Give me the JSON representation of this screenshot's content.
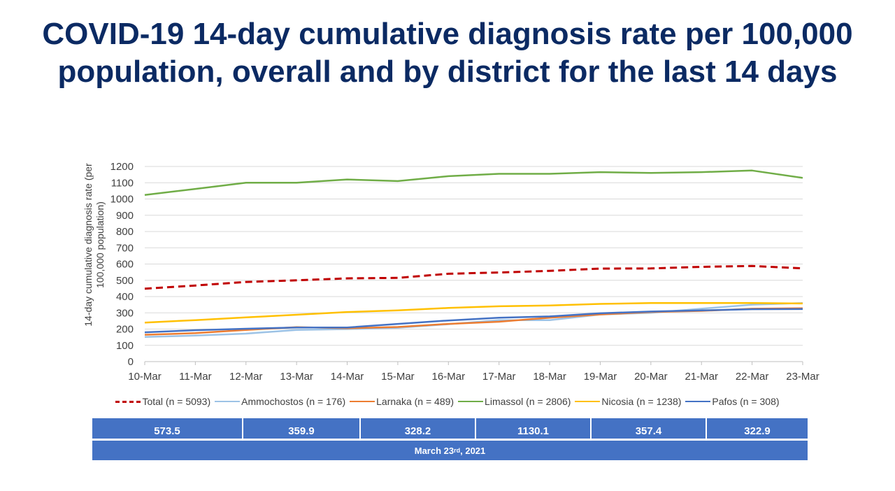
{
  "title": {
    "line1": "COVID-19 14-day cumulative diagnosis rate per 100,000",
    "line2": "population, overall and by district for the last 14 days"
  },
  "chart_data": {
    "type": "line",
    "ylabel": "14-day cumulative diagnosis rate (per 100,000 population)",
    "ylim": [
      0,
      1200
    ],
    "yticks": [
      0,
      100,
      200,
      300,
      400,
      500,
      600,
      700,
      800,
      900,
      1000,
      1100,
      1200
    ],
    "categories": [
      "10-Mar",
      "11-Mar",
      "12-Mar",
      "13-Mar",
      "14-Mar",
      "15-Mar",
      "16-Mar",
      "17-Mar",
      "18-Mar",
      "19-Mar",
      "20-Mar",
      "21-Mar",
      "22-Mar",
      "23-Mar"
    ],
    "grid": true,
    "legend_position": "bottom",
    "series": [
      {
        "name": "Total (n = 5093)",
        "color": "#c00000",
        "dashed": true,
        "values": [
          448,
          468,
          490,
          500,
          512,
          515,
          540,
          548,
          558,
          572,
          573,
          583,
          588,
          573.5
        ]
      },
      {
        "name": "Ammochostos (n = 176)",
        "color": "#9dc3e6",
        "dashed": false,
        "values": [
          152,
          160,
          172,
          195,
          200,
          208,
          230,
          255,
          255,
          290,
          300,
          325,
          350,
          359.9
        ]
      },
      {
        "name": "Larnaka (n = 489)",
        "color": "#ed7d31",
        "dashed": false,
        "values": [
          165,
          175,
          195,
          212,
          205,
          213,
          232,
          245,
          270,
          290,
          305,
          312,
          325,
          328.2
        ]
      },
      {
        "name": "Limassol (n = 2806)",
        "color": "#70ad47",
        "dashed": false,
        "values": [
          1025,
          1062,
          1100,
          1100,
          1120,
          1110,
          1140,
          1155,
          1155,
          1165,
          1160,
          1165,
          1175,
          1130.1
        ]
      },
      {
        "name": "Nicosia (n = 1238)",
        "color": "#ffc000",
        "dashed": false,
        "values": [
          240,
          255,
          272,
          288,
          305,
          315,
          330,
          340,
          345,
          355,
          360,
          360,
          360,
          357.4
        ]
      },
      {
        "name": "Pafos (n = 308)",
        "color": "#4472c4",
        "dashed": false,
        "values": [
          180,
          193,
          202,
          210,
          210,
          232,
          253,
          270,
          278,
          297,
          308,
          315,
          322,
          322.9
        ]
      }
    ]
  },
  "summary_values": [
    "573.5",
    "359.9",
    "328.2",
    "1130.1",
    "357.4",
    "322.9"
  ],
  "date_label": {
    "prefix": "March 23",
    "suffix": "rd",
    "rest": ", 2021"
  }
}
